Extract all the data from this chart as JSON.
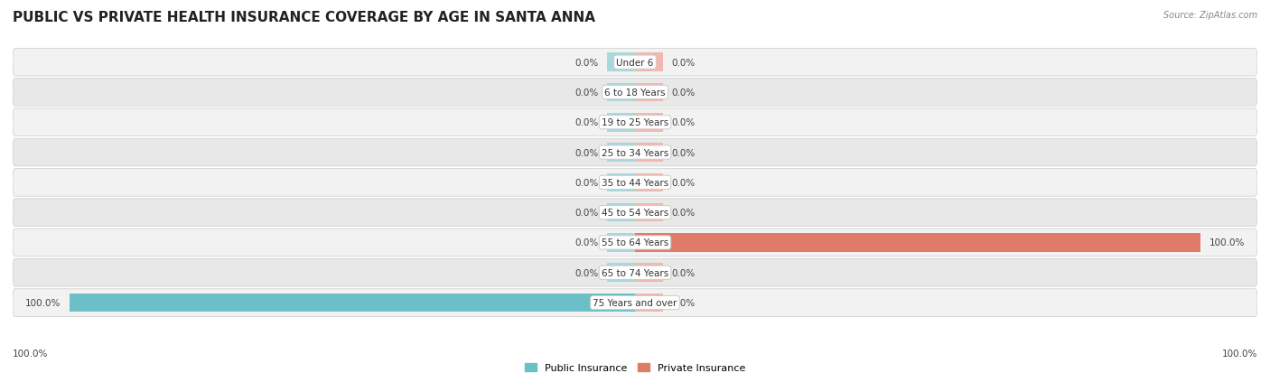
{
  "title": "PUBLIC VS PRIVATE HEALTH INSURANCE COVERAGE BY AGE IN SANTA ANNA",
  "source": "Source: ZipAtlas.com",
  "categories": [
    "Under 6",
    "6 to 18 Years",
    "19 to 25 Years",
    "25 to 34 Years",
    "35 to 44 Years",
    "45 to 54 Years",
    "55 to 64 Years",
    "65 to 74 Years",
    "75 Years and over"
  ],
  "public_values": [
    0.0,
    0.0,
    0.0,
    0.0,
    0.0,
    0.0,
    0.0,
    0.0,
    100.0
  ],
  "private_values": [
    0.0,
    0.0,
    0.0,
    0.0,
    0.0,
    0.0,
    100.0,
    0.0,
    0.0
  ],
  "public_color": "#6dbfc7",
  "private_color": "#e07b6a",
  "public_color_light": "#a8d8dc",
  "private_color_light": "#f0b8ae",
  "row_bg_even": "#f2f2f2",
  "row_bg_odd": "#e8e8e8",
  "label_color": "#444444",
  "cat_color": "#333333",
  "title_color": "#222222",
  "source_color": "#888888",
  "title_fontsize": 11,
  "label_fontsize": 7.5,
  "cat_fontsize": 7.5,
  "legend_fontsize": 8,
  "bar_stub": 5.0,
  "xlim_abs": 110,
  "bar_height": 0.62,
  "background_color": "#ffffff"
}
